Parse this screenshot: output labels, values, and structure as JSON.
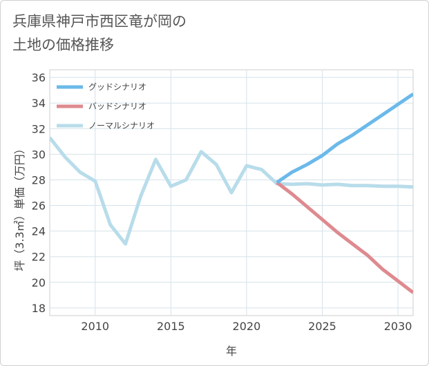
{
  "header": {
    "title_line1": "兵庫県神戸市西区竜が岡の",
    "title_line2": "土地の価格推移"
  },
  "chart_data": {
    "type": "line",
    "title": "兵庫県神戸市西区竜が岡の土地の価格推移",
    "xlabel": "年",
    "ylabel": "坪（3.3㎡）単価（万円）",
    "xlim": [
      2007,
      2031
    ],
    "ylim": [
      17.4,
      36.6
    ],
    "xticks": [
      2010,
      2015,
      2020,
      2025,
      2030
    ],
    "yticks": [
      18,
      20,
      22,
      24,
      26,
      28,
      30,
      32,
      34,
      36
    ],
    "grid": true,
    "legend_position": "top-left",
    "series": [
      {
        "name": "グッドシナリオ",
        "color": "#6bb9ea",
        "x": [
          2022,
          2023,
          2024,
          2025,
          2026,
          2027,
          2028,
          2029,
          2030,
          2031
        ],
        "values": [
          27.8,
          28.6,
          29.2,
          29.9,
          30.8,
          31.5,
          32.3,
          33.1,
          33.9,
          34.7
        ]
      },
      {
        "name": "バッドシナリオ",
        "color": "#de8a8f",
        "x": [
          2022,
          2023,
          2024,
          2025,
          2026,
          2027,
          2028,
          2029,
          2030,
          2031
        ],
        "values": [
          27.8,
          26.9,
          25.9,
          24.9,
          23.9,
          23.0,
          22.1,
          21.0,
          20.1,
          19.2
        ]
      },
      {
        "name": "ノーマルシナリオ",
        "color": "#b8dcea",
        "x": [
          2007,
          2008,
          2009,
          2010,
          2011,
          2012,
          2013,
          2014,
          2015,
          2016,
          2017,
          2018,
          2019,
          2020,
          2021,
          2022,
          2023,
          2024,
          2025,
          2026,
          2027,
          2028,
          2029,
          2030,
          2031
        ],
        "values": [
          31.3,
          29.8,
          28.6,
          27.9,
          24.5,
          23.0,
          26.7,
          29.6,
          27.5,
          28.0,
          30.2,
          29.2,
          27.0,
          29.1,
          28.8,
          27.7,
          27.65,
          27.7,
          27.6,
          27.65,
          27.55,
          27.55,
          27.5,
          27.5,
          27.45
        ]
      }
    ]
  }
}
